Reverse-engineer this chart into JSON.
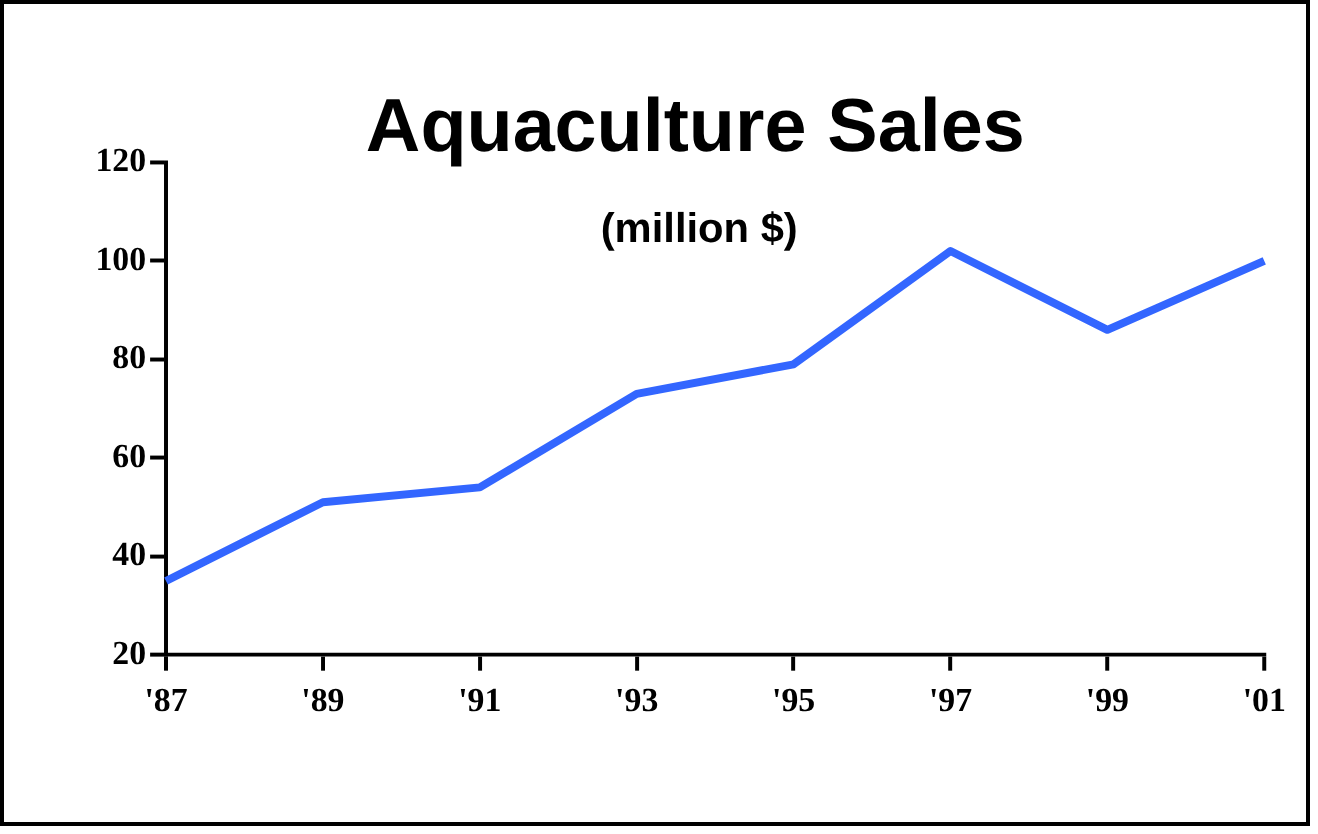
{
  "chart_data": {
    "type": "line",
    "title": "Aquaculture Sales",
    "subtitle": "(million $)",
    "categories": [
      "'87",
      "'89",
      "'91",
      "'93",
      "'95",
      "'97",
      "'99",
      "'01"
    ],
    "series": [
      {
        "color": "#3366ff",
        "values": [
          35,
          51,
          54,
          73,
          79,
          102,
          86,
          100
        ]
      }
    ],
    "ylim": [
      20,
      120
    ],
    "yticks": [
      20,
      40,
      60,
      80,
      100,
      120
    ],
    "grid": false,
    "legend": false,
    "marker": "none",
    "line_style": "solid"
  }
}
